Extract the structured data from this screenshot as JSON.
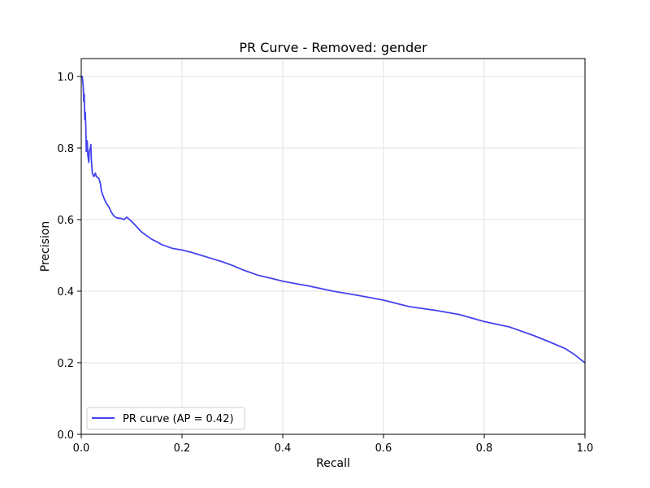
{
  "chart_data": {
    "type": "line",
    "title": "PR Curve - Removed: gender",
    "xlabel": "Recall",
    "ylabel": "Precision",
    "xlim": [
      0.0,
      1.0
    ],
    "ylim": [
      0.0,
      1.05
    ],
    "xticks": [
      0.0,
      0.2,
      0.4,
      0.6,
      0.8,
      1.0
    ],
    "xtick_labels": [
      "0.0",
      "0.2",
      "0.4",
      "0.6",
      "0.8",
      "1.0"
    ],
    "yticks": [
      0.0,
      0.2,
      0.4,
      0.6,
      0.8,
      1.0
    ],
    "ytick_labels": [
      "0.0",
      "0.2",
      "0.4",
      "0.6",
      "0.8",
      "1.0"
    ],
    "grid": true,
    "legend_position": "lower-left",
    "series": [
      {
        "name": "PR curve (AP = 0.42)",
        "color": "#4444ee",
        "points": [
          [
            0.0,
            1.0
          ],
          [
            0.002,
            1.0
          ],
          [
            0.004,
            0.97
          ],
          [
            0.005,
            0.93
          ],
          [
            0.006,
            0.95
          ],
          [
            0.007,
            0.88
          ],
          [
            0.008,
            0.9
          ],
          [
            0.009,
            0.86
          ],
          [
            0.01,
            0.79
          ],
          [
            0.012,
            0.82
          ],
          [
            0.013,
            0.78
          ],
          [
            0.015,
            0.76
          ],
          [
            0.016,
            0.79
          ],
          [
            0.018,
            0.8
          ],
          [
            0.019,
            0.81
          ],
          [
            0.02,
            0.77
          ],
          [
            0.022,
            0.73
          ],
          [
            0.025,
            0.72
          ],
          [
            0.028,
            0.73
          ],
          [
            0.03,
            0.72
          ],
          [
            0.035,
            0.715
          ],
          [
            0.038,
            0.7
          ],
          [
            0.04,
            0.68
          ],
          [
            0.045,
            0.66
          ],
          [
            0.05,
            0.645
          ],
          [
            0.055,
            0.635
          ],
          [
            0.06,
            0.62
          ],
          [
            0.065,
            0.61
          ],
          [
            0.07,
            0.605
          ],
          [
            0.08,
            0.603
          ],
          [
            0.085,
            0.6
          ],
          [
            0.09,
            0.607
          ],
          [
            0.1,
            0.595
          ],
          [
            0.11,
            0.58
          ],
          [
            0.12,
            0.565
          ],
          [
            0.13,
            0.555
          ],
          [
            0.14,
            0.545
          ],
          [
            0.15,
            0.538
          ],
          [
            0.16,
            0.53
          ],
          [
            0.18,
            0.52
          ],
          [
            0.2,
            0.515
          ],
          [
            0.22,
            0.508
          ],
          [
            0.25,
            0.495
          ],
          [
            0.28,
            0.482
          ],
          [
            0.3,
            0.472
          ],
          [
            0.32,
            0.46
          ],
          [
            0.35,
            0.445
          ],
          [
            0.38,
            0.435
          ],
          [
            0.4,
            0.428
          ],
          [
            0.43,
            0.42
          ],
          [
            0.45,
            0.415
          ],
          [
            0.5,
            0.4
          ],
          [
            0.55,
            0.388
          ],
          [
            0.6,
            0.375
          ],
          [
            0.65,
            0.357
          ],
          [
            0.7,
            0.347
          ],
          [
            0.75,
            0.335
          ],
          [
            0.8,
            0.315
          ],
          [
            0.85,
            0.3
          ],
          [
            0.9,
            0.275
          ],
          [
            0.93,
            0.258
          ],
          [
            0.96,
            0.24
          ],
          [
            0.98,
            0.222
          ],
          [
            0.995,
            0.205
          ],
          [
            1.0,
            0.2
          ]
        ]
      }
    ]
  }
}
